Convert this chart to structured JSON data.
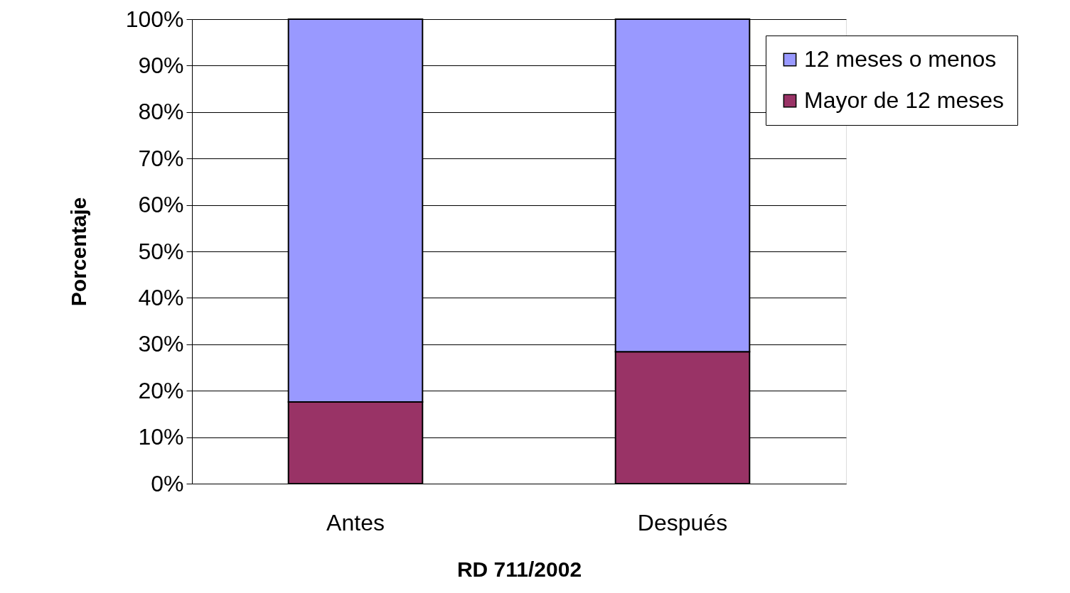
{
  "chart_data": {
    "type": "bar",
    "stacked": true,
    "xlabel": "RD 711/2002",
    "ylabel": "Porcentaje",
    "categories": [
      "Antes",
      "Después"
    ],
    "series": [
      {
        "name": "Mayor de 12 meses",
        "color": "#993366",
        "values": [
          17.6,
          28.4
        ]
      },
      {
        "name": "12 meses o menos",
        "color": "#9999ff",
        "values": [
          82.4,
          71.6
        ]
      }
    ],
    "ylim": [
      0,
      100
    ],
    "yticks": [
      {
        "value": 0,
        "label": "0%"
      },
      {
        "value": 10,
        "label": "10%"
      },
      {
        "value": 20,
        "label": "20%"
      },
      {
        "value": 30,
        "label": "30%"
      },
      {
        "value": 40,
        "label": "40%"
      },
      {
        "value": 50,
        "label": "50%"
      },
      {
        "value": 60,
        "label": "60%"
      },
      {
        "value": 70,
        "label": "70%"
      },
      {
        "value": 80,
        "label": "80%"
      },
      {
        "value": 90,
        "label": "90%"
      },
      {
        "value": 100,
        "label": "100%"
      }
    ],
    "grid": "y",
    "legend": "top right"
  }
}
